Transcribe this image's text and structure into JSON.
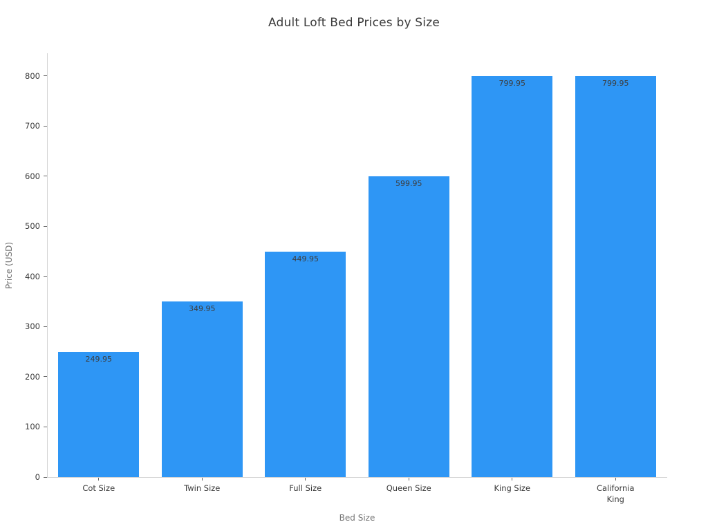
{
  "chart_data": {
    "type": "bar",
    "title": "Adult Loft Bed Prices by Size",
    "xlabel": "Bed Size",
    "ylabel": "Price (USD)",
    "categories": [
      "Cot Size",
      "Twin Size",
      "Full Size",
      "Queen Size",
      "King Size",
      "California\nKing"
    ],
    "values": [
      249.95,
      349.95,
      449.95,
      599.95,
      799.95,
      799.95
    ],
    "value_labels": [
      "249.95",
      "349.95",
      "449.95",
      "599.95",
      "799.95",
      "799.95"
    ],
    "yticks": [
      0,
      100,
      200,
      300,
      400,
      500,
      600,
      700,
      800
    ],
    "ylim": [
      0,
      845
    ],
    "grid": false,
    "legend_position": "none",
    "bar_color": "#2e96f5"
  },
  "colors": {
    "background": "#ffffff",
    "bar": "#2e96f5",
    "axis_line": "#d4d4d4",
    "tick_mark": "#666666",
    "tick_label": "#3a3a3a",
    "value_label": "#3d3d3d",
    "axis_title": "#757575",
    "title": "#3a3a3a"
  }
}
